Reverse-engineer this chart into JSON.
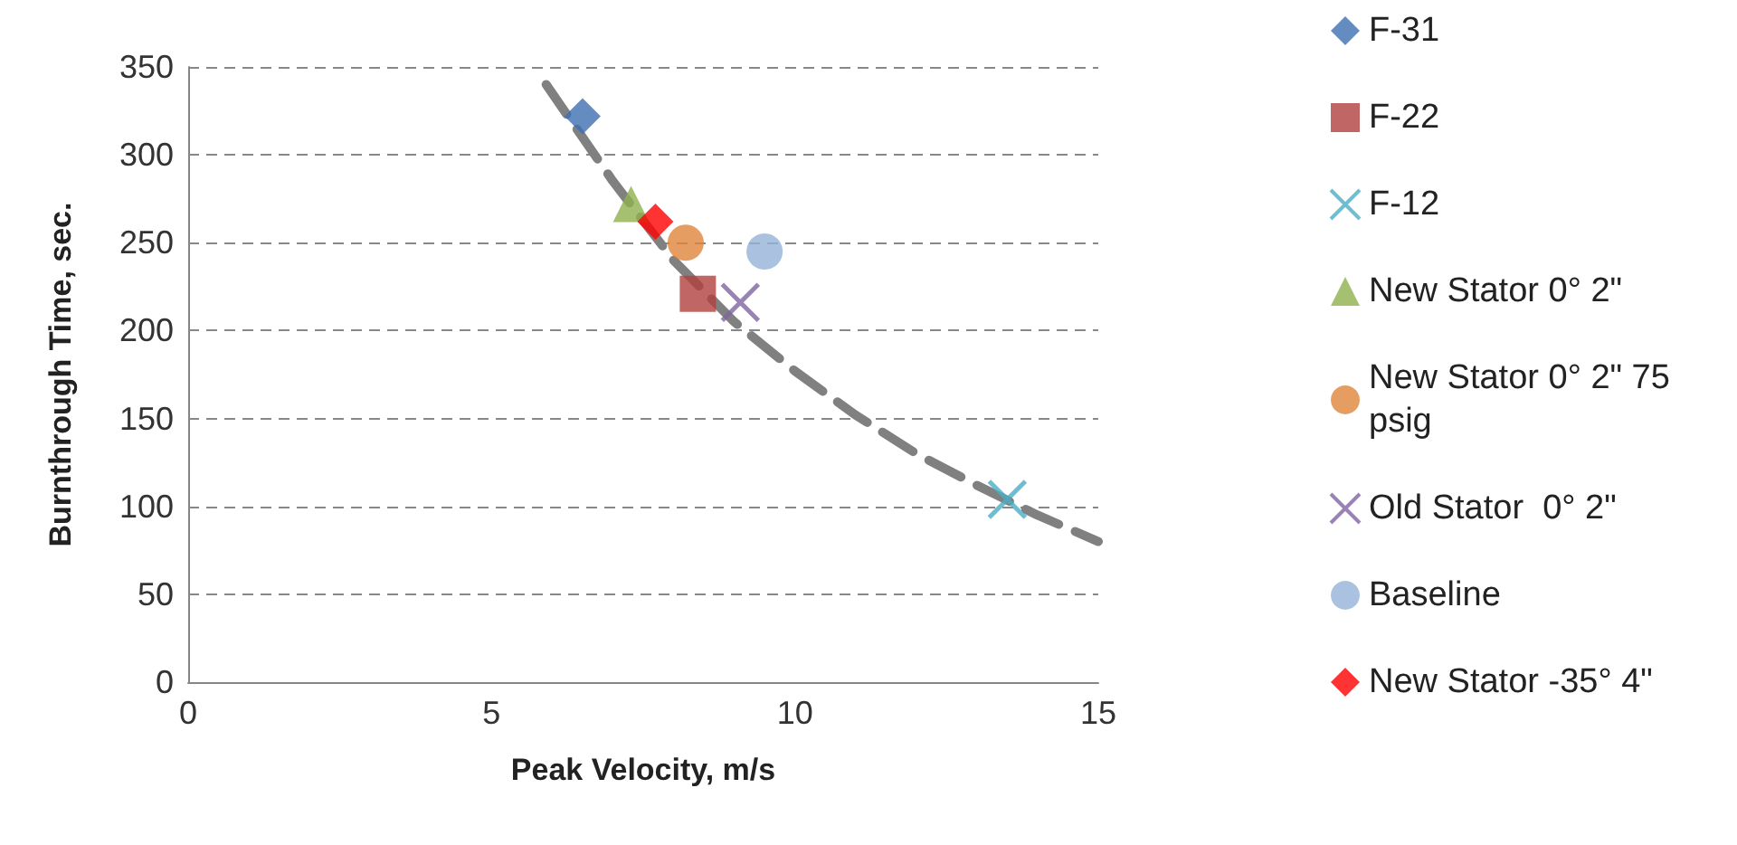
{
  "chart_data": {
    "type": "scatter",
    "xlabel": "Peak Velocity, m/s",
    "ylabel": "Burnthrough Time, sec.",
    "xlim": [
      0,
      15
    ],
    "xticks": [
      0,
      5,
      10,
      15
    ],
    "ylim": [
      0,
      350
    ],
    "yticks": [
      0,
      50,
      100,
      150,
      200,
      250,
      300,
      350
    ],
    "grid": "y",
    "legend": "right",
    "series": [
      {
        "name": "F-31",
        "color": "#3f6fb0",
        "marker": "diamond",
        "x": [
          6.5
        ],
        "values": [
          322
        ]
      },
      {
        "name": "F-22",
        "color": "#b0413e",
        "marker": "square",
        "x": [
          8.4
        ],
        "values": [
          221
        ]
      },
      {
        "name": "F-12",
        "color": "#4bacc6",
        "marker": "cross",
        "x": [
          13.5
        ],
        "values": [
          104
        ]
      },
      {
        "name": "New Stator 0° 2\"",
        "color": "#8fb04e",
        "marker": "triangle",
        "x": [
          7.3
        ],
        "values": [
          272
        ]
      },
      {
        "name": "New Stator 0° 2\" 75 psig",
        "color": "#e0843a",
        "marker": "circle",
        "x": [
          8.2
        ],
        "values": [
          250
        ]
      },
      {
        "name": "Old Stator  0° 2\"",
        "color": "#8064a2",
        "marker": "cross",
        "x": [
          9.1
        ],
        "values": [
          216
        ]
      },
      {
        "name": "Baseline",
        "color": "#95b3d7",
        "marker": "circle",
        "x": [
          9.5
        ],
        "values": [
          245
        ]
      },
      {
        "name": "New Stator -35° 4\"",
        "color": "#ff0000",
        "marker": "diamond",
        "x": [
          7.7
        ],
        "values": [
          262
        ]
      },
      {
        "type": "line",
        "color": "#808080",
        "marker": "none",
        "line_style": "dashed",
        "x": [
          5.9,
          7,
          8,
          9,
          10,
          11,
          12,
          13,
          14,
          15
        ],
        "values": [
          340,
          285,
          240,
          205,
          177,
          152,
          130,
          112,
          95,
          80
        ]
      }
    ]
  }
}
